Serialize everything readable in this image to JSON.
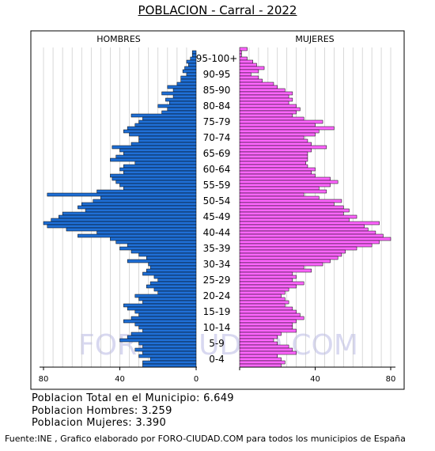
{
  "title": "POBLACION - Carral - 2022",
  "watermark": "FORO-CIUDAD.COM",
  "stats": {
    "total": "Poblacion Total en el Municipio: 6.649",
    "hombres": "Poblacion Hombres: 3.259",
    "mujeres": "Poblacion Mujeres: 3.390"
  },
  "source": "Fuente:INE , Grafico elaborado por FORO-CIUDAD.COM para todos los municipios de España",
  "colors": {
    "male": "#1f6fd6",
    "female": "#ff66ff",
    "bar_border": "#000000",
    "grid": "#c8c8c8"
  },
  "chart_data": {
    "type": "bar",
    "orientation": "horizontal",
    "layout": "population-pyramid",
    "title": "POBLACION - Carral - 2022",
    "left_label": "HOMBRES",
    "right_label": "MUJERES",
    "age_labels": [
      "95-100+",
      "90-95",
      "85-90",
      "80-84",
      "75-79",
      "70-74",
      "65-69",
      "60-64",
      "55-59",
      "50-54",
      "45-49",
      "40-44",
      "35-39",
      "30-34",
      "25-29",
      "20-24",
      "15-19",
      "10-14",
      "5-9",
      "0-4"
    ],
    "x_ticks_left": [
      80,
      40,
      0
    ],
    "x_ticks_right": [
      40,
      80
    ],
    "xlim": [
      0,
      85
    ],
    "grid": true,
    "ages_top_to_bottom": "100 down to 0",
    "series": [
      {
        "name": "HOMBRES",
        "values": [
          0,
          2,
          2,
          3,
          5,
          4,
          6,
          7,
          5,
          8,
          8,
          10,
          15,
          12,
          18,
          12,
          16,
          14,
          20,
          15,
          18,
          34,
          28,
          30,
          32,
          36,
          38,
          35,
          30,
          30,
          34,
          44,
          40,
          38,
          42,
          45,
          32,
          38,
          40,
          38,
          45,
          44,
          42,
          40,
          38,
          52,
          78,
          50,
          54,
          60,
          62,
          58,
          70,
          72,
          76,
          80,
          78,
          68,
          52,
          62,
          45,
          42,
          36,
          40,
          34,
          30,
          26,
          36,
          25,
          24,
          26,
          28,
          22,
          20,
          24,
          26,
          22,
          20,
          32,
          30,
          28,
          38,
          36,
          32,
          30,
          34,
          38,
          32,
          30,
          28,
          34,
          36,
          40,
          30,
          28,
          32,
          28,
          30,
          24,
          28,
          28
        ]
      },
      {
        "name": "MUJERES",
        "values": [
          4,
          1,
          1,
          4,
          7,
          9,
          13,
          10,
          6,
          10,
          12,
          18,
          20,
          24,
          28,
          26,
          28,
          26,
          30,
          32,
          30,
          28,
          34,
          44,
          40,
          50,
          42,
          40,
          34,
          36,
          38,
          46,
          38,
          36,
          36,
          36,
          35,
          36,
          40,
          38,
          40,
          48,
          52,
          48,
          42,
          46,
          34,
          42,
          54,
          50,
          55,
          58,
          55,
          62,
          58,
          74,
          66,
          68,
          72,
          76,
          80,
          74,
          70,
          62,
          56,
          54,
          52,
          48,
          44,
          34,
          38,
          28,
          30,
          28,
          34,
          30,
          26,
          24,
          22,
          24,
          26,
          24,
          28,
          30,
          32,
          34,
          30,
          28,
          28,
          30,
          22,
          20,
          18,
          20,
          26,
          28,
          30,
          20,
          22,
          24,
          22
        ]
      }
    ]
  }
}
